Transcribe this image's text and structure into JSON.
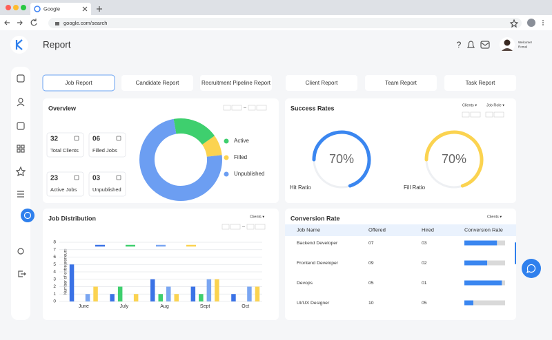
{
  "browser": {
    "tab_title": "Google",
    "url": "google.com/search"
  },
  "header": {
    "title": "Report",
    "help": "?",
    "welcome": "Welcome!",
    "user": "Romal"
  },
  "tabs": [
    "Job Report",
    "Candidate Report",
    "Recruitment Pipeline  Report",
    "Client Report",
    "Team Report",
    "Task Report"
  ],
  "overview_stats": [
    {
      "value": "32",
      "label": "Total Clients"
    },
    {
      "value": "06",
      "label": "Filled Jobs"
    },
    {
      "value": "23",
      "label": "Active Jobs"
    },
    {
      "value": "03",
      "label": "Unpublished"
    }
  ],
  "filters": {
    "clients": "Clients ▾",
    "job_role": "Job Role ▾"
  },
  "chart_data": [
    {
      "type": "pie",
      "title": "Overview",
      "categories": [
        "Active",
        "Filled",
        "Unpublished"
      ],
      "values": [
        18,
        8,
        74
      ],
      "colors": [
        "#3ecf6e",
        "#fbd350",
        "#6c9ef2"
      ]
    },
    {
      "type": "gauge",
      "title": "Success Rates",
      "categories": [
        "Hit Ratio",
        "Fill Ratio"
      ],
      "values": [
        70,
        70
      ],
      "value_labels": [
        "70%",
        "70%"
      ],
      "colors": [
        "#3a86f0",
        "#fbd350"
      ]
    },
    {
      "type": "bar",
      "title": "Job Distribution",
      "y_label": "Number of entrepreneurs",
      "categories": [
        "June",
        "July",
        "Aug",
        "Sept",
        "Oct"
      ],
      "series": [
        {
          "color": "#3a72e6",
          "values": [
            5,
            1,
            3,
            2,
            1
          ]
        },
        {
          "color": "#3ecf6e",
          "values": [
            null,
            2,
            1,
            1,
            null
          ]
        },
        {
          "color": "#7aa6f2",
          "values": [
            1,
            null,
            2,
            3,
            2
          ]
        },
        {
          "color": "#fbd350",
          "values": [
            2,
            1,
            1,
            3,
            2
          ]
        }
      ],
      "ylim": [
        0,
        8
      ],
      "yticks": [
        0,
        1,
        2,
        3,
        4,
        5,
        6,
        7,
        8
      ],
      "grid": true
    }
  ],
  "conversion": {
    "title": "Conversion Rate",
    "columns": [
      "Job Name",
      "Offered",
      "Hired",
      "Conversion Rate"
    ],
    "rows": [
      [
        "Backend Developer",
        "07",
        "03"
      ],
      [
        "Frontend Developer",
        "09",
        "02"
      ],
      [
        "Devops",
        "05",
        "01"
      ],
      [
        "UI/UX Designer",
        "10",
        "05"
      ]
    ],
    "rates": [
      80,
      56,
      92,
      22
    ],
    "color": "#3a86f0"
  }
}
